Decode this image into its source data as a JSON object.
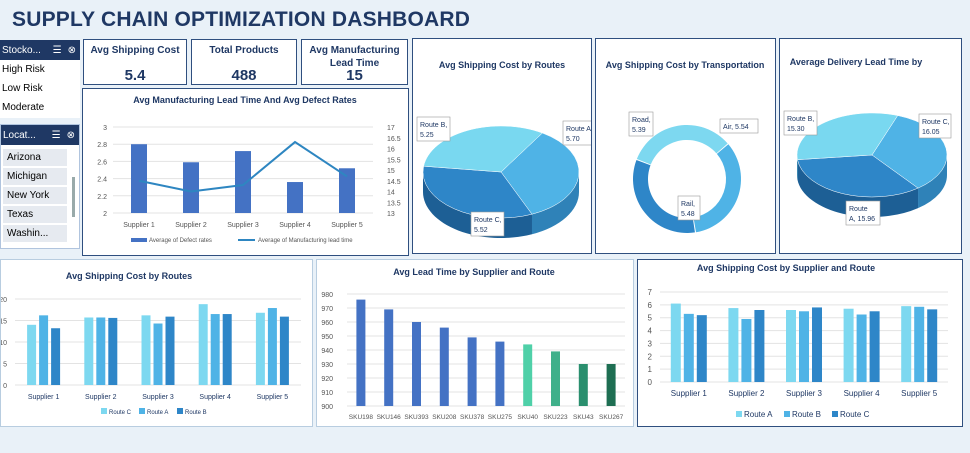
{
  "dashboard_title": "SUPPLY CHAIN OPTIMIZATION DASHBOARD",
  "slicer_stock": {
    "header": "Stocko...",
    "items": [
      "High Risk",
      "Low Risk",
      "Moderate"
    ]
  },
  "slicer_location": {
    "header": "Locat...",
    "items": [
      "Arizona",
      "Michigan",
      "New York",
      "Texas",
      "Washin..."
    ]
  },
  "kpis": {
    "shipping_label": "Avg Shipping Cost",
    "shipping_value": "5.4",
    "products_label": "Total Products",
    "products_value": "488",
    "mfg_label": "Avg Manufacturing Lead Time",
    "mfg_value": "15"
  },
  "colors": {
    "dark": "#1f3864",
    "bar_blue": "#4472c4",
    "line_blue": "#2e86c1",
    "light": "#7dd8f0",
    "mid": "#4fb3e6",
    "deep": "#2e86c8"
  },
  "chart_data": [
    {
      "id": "mfg_defect",
      "type": "bar",
      "title": "Avg Manufacturing Lead Time And Avg Defect Rates",
      "categories": [
        "Supplier 1",
        "Supplier 2",
        "Supplier 3",
        "Supplier 4",
        "Supplier 5"
      ],
      "series": [
        {
          "name": "Average of Defect rates",
          "values": [
            2.8,
            2.59,
            2.72,
            2.36,
            2.52
          ]
        },
        {
          "name": "Average of Manufacturing lead time",
          "values": [
            14.5,
            14.0,
            14.3,
            16.3,
            14.7
          ]
        }
      ],
      "y_ticks": [
        "3",
        "2.8",
        "2.6",
        "2.4",
        "2.2",
        "2"
      ],
      "y2_ticks": [
        "17",
        "16.5",
        "16",
        "15.5",
        "15",
        "14.5",
        "14",
        "13.5",
        "13"
      ],
      "ylim": [
        2,
        3
      ],
      "y2lim": [
        13,
        17
      ]
    },
    {
      "id": "pie_routes",
      "type": "pie",
      "title": "Avg Shipping Cost by Routes",
      "slices": [
        {
          "label": "Route A,",
          "value_label": "5.70",
          "value": 5.7
        },
        {
          "label": "Route C,",
          "value_label": "5.52",
          "value": 5.52
        },
        {
          "label": "Route B,",
          "value_label": "5.25",
          "value": 5.25
        }
      ]
    },
    {
      "id": "donut_transport",
      "type": "pie",
      "title": "Avg Shipping Cost by Transportation",
      "slices": [
        {
          "label": "Air, 5.54",
          "value_label": "",
          "value": 5.54
        },
        {
          "label": "Rail,",
          "value_label": "5.48",
          "value": 5.48
        },
        {
          "label": "Road,",
          "value_label": "5.39",
          "value": 5.39
        }
      ]
    },
    {
      "id": "pie_delivery",
      "type": "pie",
      "title": "Average Delivery Lead Time by",
      "slices": [
        {
          "label": "Route C,",
          "value_label": "16.05",
          "value": 16.05
        },
        {
          "label": "Route",
          "value_label": "A, 15.96",
          "value": 15.96
        },
        {
          "label": "Route B,",
          "value_label": "15.30",
          "value": 15.3
        }
      ]
    },
    {
      "id": "routes_by_supplier",
      "type": "bar",
      "title": "Avg Shipping Cost by Routes",
      "categories": [
        "Supplier 1",
        "Supplier 2",
        "Supplier 3",
        "Supplier 4",
        "Supplier 5"
      ],
      "series": [
        {
          "name": "Route C",
          "values": [
            14,
            15.7,
            16.2,
            18.8,
            16.8
          ]
        },
        {
          "name": "Route A",
          "values": [
            16.2,
            15.7,
            14.3,
            16.5,
            17.9
          ]
        },
        {
          "name": "Route B",
          "values": [
            13.2,
            15.6,
            15.9,
            16.5,
            15.9
          ]
        }
      ],
      "y_ticks": [
        "20",
        "15",
        "10",
        "5",
        "0"
      ],
      "ylim": [
        0,
        20
      ]
    },
    {
      "id": "lead_sku",
      "type": "bar",
      "title": "Avg Lead Time by Supplier and Route",
      "categories": [
        "SKU198",
        "SKU146",
        "SKU393",
        "SKU208",
        "SKU378",
        "SKU275",
        "SKU40",
        "SKU223",
        "SKU43",
        "SKU267"
      ],
      "values": [
        976,
        969,
        960,
        956,
        949,
        946,
        944,
        939,
        930,
        930
      ],
      "y_ticks": [
        "980",
        "970",
        "960",
        "950",
        "940",
        "930",
        "920",
        "910",
        "900"
      ],
      "ylim": [
        900,
        980
      ]
    },
    {
      "id": "cost_supplier_route",
      "type": "bar",
      "title": "Avg Shipping Cost by Supplier and Route",
      "categories": [
        "Supplier 1",
        "Supplier 2",
        "Supplier 3",
        "Supplier 4",
        "Supplier 5"
      ],
      "series": [
        {
          "name": "Route A",
          "values": [
            6.1,
            5.75,
            5.6,
            5.7,
            5.9
          ]
        },
        {
          "name": "Route B",
          "values": [
            5.3,
            4.9,
            5.5,
            5.25,
            5.85
          ]
        },
        {
          "name": "Route C",
          "values": [
            5.2,
            5.6,
            5.8,
            5.5,
            5.65
          ]
        }
      ],
      "y_ticks": [
        "7",
        "6",
        "5",
        "4",
        "3",
        "2",
        "1",
        "0"
      ],
      "ylim": [
        0,
        7
      ]
    }
  ]
}
